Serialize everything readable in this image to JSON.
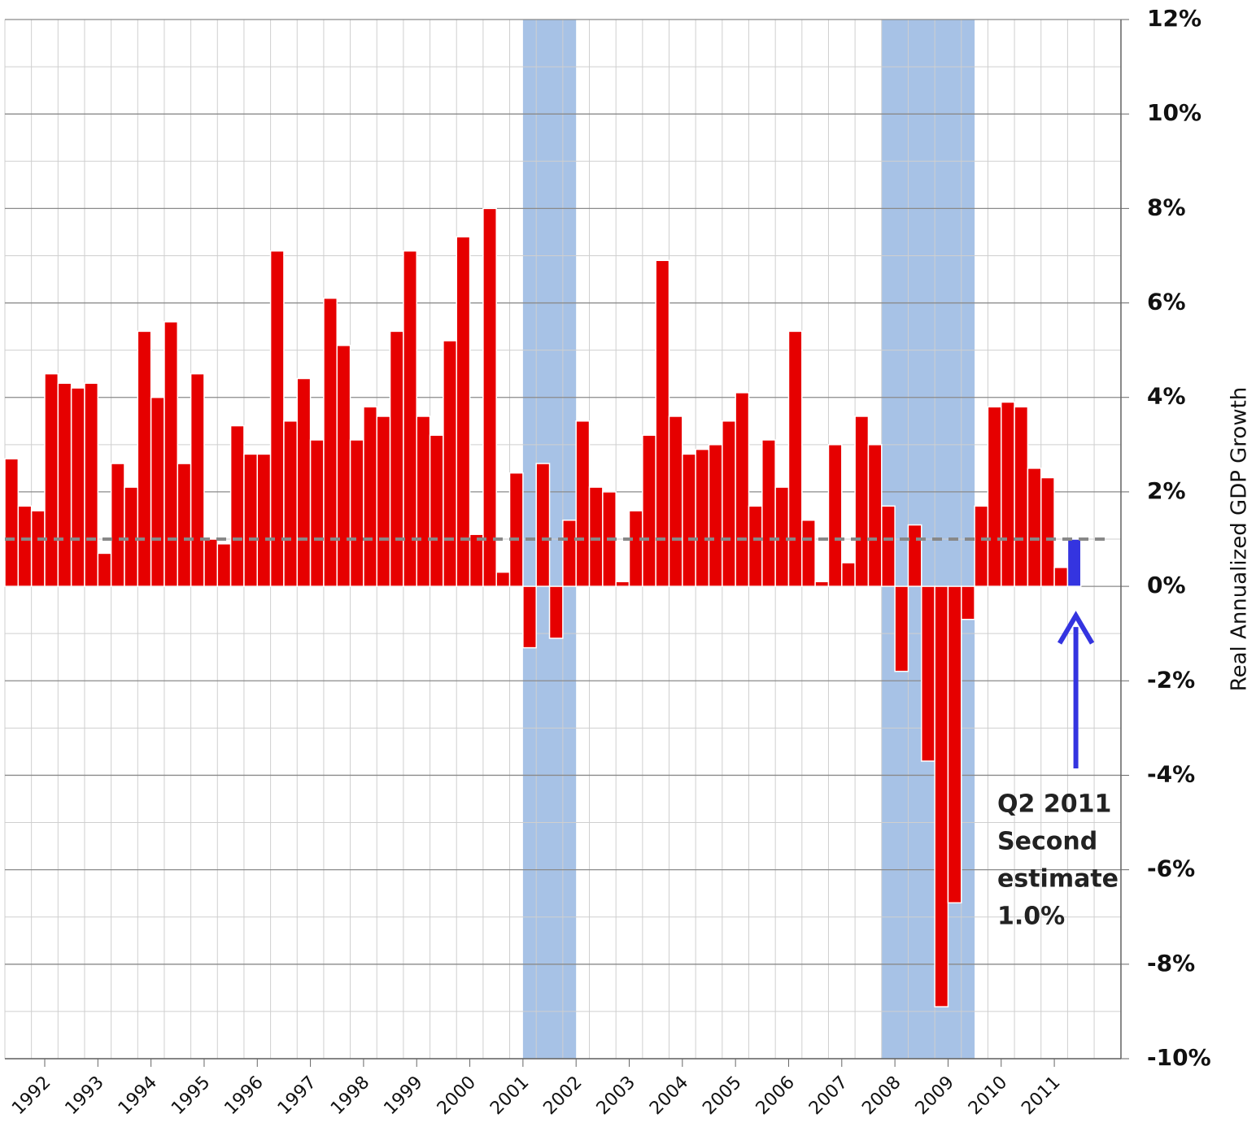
{
  "chart_data": {
    "type": "bar",
    "y_axis_label": "Real Annualized GDP Growth",
    "categories": [
      null,
      null,
      null,
      "1992",
      null,
      null,
      null,
      "1993",
      null,
      null,
      null,
      "1994",
      null,
      null,
      null,
      "1995",
      null,
      null,
      null,
      "1996",
      null,
      null,
      null,
      "1997",
      null,
      null,
      null,
      "1998",
      null,
      null,
      null,
      "1999",
      null,
      null,
      null,
      "2000",
      null,
      null,
      null,
      "2001",
      null,
      null,
      null,
      "2002",
      null,
      null,
      null,
      "2003",
      null,
      null,
      null,
      "2004",
      null,
      null,
      null,
      "2005",
      null,
      null,
      null,
      "2006",
      null,
      null,
      null,
      "2007",
      null,
      null,
      null,
      "2008",
      null,
      null,
      null,
      "2009",
      null,
      null,
      null,
      "2010",
      null,
      null,
      null,
      "2011",
      null
    ],
    "values": [
      2.7,
      1.7,
      1.6,
      4.5,
      4.3,
      4.2,
      4.3,
      0.7,
      2.6,
      2.1,
      5.4,
      4.0,
      5.6,
      2.6,
      4.5,
      1.0,
      0.9,
      3.4,
      2.8,
      2.8,
      7.1,
      3.5,
      4.4,
      3.1,
      6.1,
      5.1,
      3.1,
      3.8,
      3.6,
      5.4,
      7.1,
      3.6,
      3.2,
      5.2,
      7.4,
      1.1,
      8.0,
      0.3,
      2.4,
      -1.3,
      2.6,
      -1.1,
      1.4,
      3.5,
      2.1,
      2.0,
      0.1,
      1.6,
      3.2,
      6.9,
      3.6,
      2.8,
      2.9,
      3.0,
      3.5,
      4.1,
      1.7,
      3.1,
      2.1,
      5.4,
      1.4,
      0.1,
      3.0,
      0.5,
      3.6,
      3.0,
      1.7,
      -1.8,
      1.3,
      -3.7,
      -8.9,
      -6.7,
      -0.7,
      1.7,
      3.8,
      3.9,
      3.8,
      2.5,
      2.3,
      0.4,
      1.0
    ],
    "color": "#e60000",
    "highlight_index": 80,
    "highlight_color": "#3434e0",
    "shaded_ranges": [
      [
        39,
        42
      ],
      [
        66,
        72
      ]
    ],
    "shade_color": "#a7c2e6",
    "reference_line": 1.0,
    "ylim": [
      -10,
      12
    ],
    "yticks": [
      {
        "value": -10,
        "label": "-10%"
      },
      {
        "value": -8,
        "label": "-8%"
      },
      {
        "value": -6,
        "label": "-6%"
      },
      {
        "value": -4,
        "label": "-4%"
      },
      {
        "value": -2,
        "label": "-2%"
      },
      {
        "value": 0,
        "label": "0%"
      },
      {
        "value": 2,
        "label": "2%"
      },
      {
        "value": 4,
        "label": "4%"
      },
      {
        "value": 6,
        "label": "6%"
      },
      {
        "value": 8,
        "label": "8%"
      },
      {
        "value": 10,
        "label": "10%"
      },
      {
        "value": 12,
        "label": "12%"
      }
    ],
    "grid": true,
    "annotation": [
      "Q2 2011",
      "Second",
      "estimate",
      "1.0%"
    ]
  }
}
